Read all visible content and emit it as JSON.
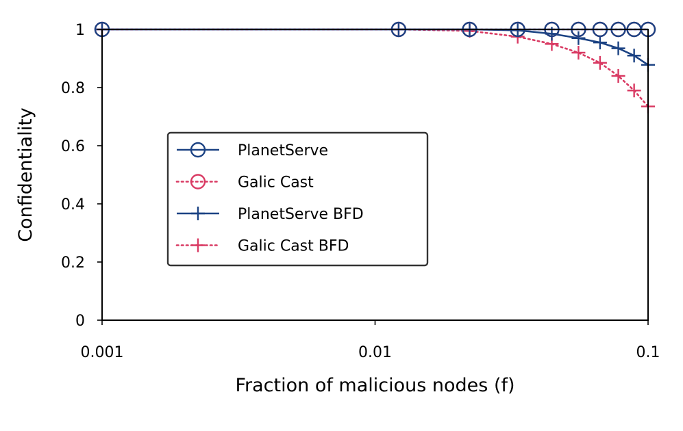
{
  "chart_data": {
    "type": "line",
    "xlabel": "Fraction of malicious nodes (f)",
    "ylabel": "Confidentiality",
    "xscale": "log",
    "xlim": [
      0.001,
      0.1
    ],
    "ylim": [
      0,
      1
    ],
    "xticks": [
      {
        "value": 0.001,
        "label": "0.001"
      },
      {
        "value": 0.01,
        "label": "0.01"
      },
      {
        "value": 0.1,
        "label": "0.1"
      }
    ],
    "yticks": [
      {
        "value": 0,
        "label": "0"
      },
      {
        "value": 0.2,
        "label": "0.2"
      },
      {
        "value": 0.4,
        "label": "0.4"
      },
      {
        "value": 0.6,
        "label": "0.6"
      },
      {
        "value": 0.8,
        "label": "0.8"
      },
      {
        "value": 1,
        "label": "1"
      }
    ],
    "grid": false,
    "legend_position": "center-left",
    "series": [
      {
        "name": "PlanetServe",
        "color": "#1b4283",
        "line_style": "solid",
        "marker": "circle",
        "x": [
          0.001,
          0.0122,
          0.0222,
          0.0333,
          0.0444,
          0.0556,
          0.0667,
          0.0778,
          0.0889,
          0.1
        ],
        "y": [
          1,
          1,
          1,
          1,
          1,
          1,
          1,
          1,
          1,
          1
        ]
      },
      {
        "name": "Galic Cast",
        "color": "#d93a63",
        "line_style": "dotted",
        "marker": "circle",
        "x": [
          0.001,
          0.0122,
          0.0222,
          0.0333,
          0.0444,
          0.0556,
          0.0667,
          0.0778,
          0.0889,
          0.1
        ],
        "y": [
          1,
          1,
          1,
          1,
          1,
          1,
          1,
          1,
          1,
          1
        ]
      },
      {
        "name": "PlanetServe BFD",
        "color": "#1b4283",
        "line_style": "solid",
        "marker": "plus",
        "x": [
          0.001,
          0.0122,
          0.0222,
          0.0333,
          0.0444,
          0.0556,
          0.0667,
          0.0778,
          0.0889,
          0.1
        ],
        "y": [
          1,
          1,
          1,
          0.997,
          0.985,
          0.97,
          0.955,
          0.935,
          0.91,
          0.878
        ]
      },
      {
        "name": "Galic Cast BFD",
        "color": "#d93a63",
        "line_style": "dotted",
        "marker": "plus",
        "x": [
          0.001,
          0.0122,
          0.0222,
          0.0333,
          0.0444,
          0.0556,
          0.0667,
          0.0778,
          0.0889,
          0.1
        ],
        "y": [
          1,
          1,
          0.995,
          0.975,
          0.95,
          0.92,
          0.885,
          0.84,
          0.79,
          0.735
        ]
      }
    ]
  }
}
